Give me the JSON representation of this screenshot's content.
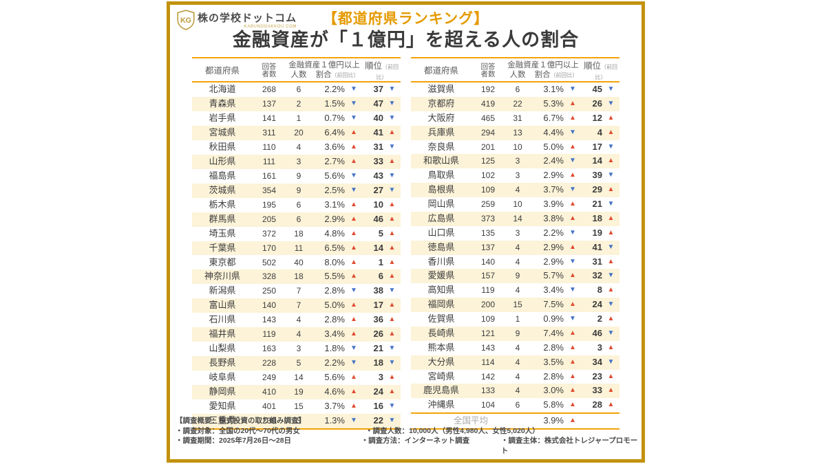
{
  "brand": {
    "name": "株の学校ドットコム",
    "domain": "KABUNOGAKKOU.COM",
    "monogram": "KG"
  },
  "title": {
    "badge": "【都道府県ランキング】",
    "main": "金融資産が「１億円」を超える人の割合"
  },
  "columns": {
    "prefecture": "都道府県",
    "respondents_line1": "回答",
    "respondents_line2": "者数",
    "assets_group": "金融資産１億円以上",
    "count": "人数",
    "ratio": "割合",
    "ratio_note": "（前回比）",
    "rank": "順位",
    "rank_note": "（前回比）"
  },
  "icons": {
    "up": "▲",
    "down": "▼"
  },
  "colors": {
    "frame_gold": "#c3910d",
    "rule_gold": "#f2a206",
    "row_stripe": "#fcf3d8",
    "badge_gold": "#e59a00",
    "title_gray": "#3a3a3a",
    "trend_up_red": "#e04a2f",
    "trend_down_blue": "#4472c4"
  },
  "chart_data": {
    "type": "table",
    "title": "金融資産が「１億円」を超える人の割合",
    "subtitle": "【都道府県ランキング】",
    "columns": [
      "都道府県",
      "回答者数",
      "金融資産１億円以上 人数",
      "金融資産１億円以上 割合（前回比）",
      "順位（前回比）"
    ],
    "left_rows": [
      {
        "pref": "北海道",
        "respondents": "268",
        "count": "6",
        "ratio": "2.2%",
        "ratio_trend": "down",
        "rank": "37",
        "rank_trend": "down"
      },
      {
        "pref": "青森県",
        "respondents": "137",
        "count": "2",
        "ratio": "1.5%",
        "ratio_trend": "down",
        "rank": "47",
        "rank_trend": "down"
      },
      {
        "pref": "岩手県",
        "respondents": "141",
        "count": "1",
        "ratio": "0.7%",
        "ratio_trend": "down",
        "rank": "40",
        "rank_trend": "down"
      },
      {
        "pref": "宮城県",
        "respondents": "311",
        "count": "20",
        "ratio": "6.4%",
        "ratio_trend": "up",
        "rank": "41",
        "rank_trend": "up"
      },
      {
        "pref": "秋田県",
        "respondents": "110",
        "count": "4",
        "ratio": "3.6%",
        "ratio_trend": "up",
        "rank": "31",
        "rank_trend": "down"
      },
      {
        "pref": "山形県",
        "respondents": "111",
        "count": "3",
        "ratio": "2.7%",
        "ratio_trend": "up",
        "rank": "33",
        "rank_trend": "up"
      },
      {
        "pref": "福島県",
        "respondents": "161",
        "count": "9",
        "ratio": "5.6%",
        "ratio_trend": "down",
        "rank": "43",
        "rank_trend": "down"
      },
      {
        "pref": "茨城県",
        "respondents": "354",
        "count": "9",
        "ratio": "2.5%",
        "ratio_trend": "down",
        "rank": "27",
        "rank_trend": "down"
      },
      {
        "pref": "栃木県",
        "respondents": "195",
        "count": "6",
        "ratio": "3.1%",
        "ratio_trend": "up",
        "rank": "10",
        "rank_trend": "up"
      },
      {
        "pref": "群馬県",
        "respondents": "205",
        "count": "6",
        "ratio": "2.9%",
        "ratio_trend": "up",
        "rank": "46",
        "rank_trend": "up"
      },
      {
        "pref": "埼玉県",
        "respondents": "372",
        "count": "18",
        "ratio": "4.8%",
        "ratio_trend": "up",
        "rank": "5",
        "rank_trend": "up"
      },
      {
        "pref": "千葉県",
        "respondents": "170",
        "count": "11",
        "ratio": "6.5%",
        "ratio_trend": "up",
        "rank": "14",
        "rank_trend": "up"
      },
      {
        "pref": "東京都",
        "respondents": "502",
        "count": "40",
        "ratio": "8.0%",
        "ratio_trend": "up",
        "rank": "1",
        "rank_trend": "up"
      },
      {
        "pref": "神奈川県",
        "respondents": "328",
        "count": "18",
        "ratio": "5.5%",
        "ratio_trend": "up",
        "rank": "6",
        "rank_trend": "up"
      },
      {
        "pref": "新潟県",
        "respondents": "250",
        "count": "7",
        "ratio": "2.8%",
        "ratio_trend": "down",
        "rank": "38",
        "rank_trend": "down"
      },
      {
        "pref": "富山県",
        "respondents": "140",
        "count": "7",
        "ratio": "5.0%",
        "ratio_trend": "up",
        "rank": "17",
        "rank_trend": "up"
      },
      {
        "pref": "石川県",
        "respondents": "143",
        "count": "4",
        "ratio": "2.8%",
        "ratio_trend": "up",
        "rank": "36",
        "rank_trend": "up"
      },
      {
        "pref": "福井県",
        "respondents": "119",
        "count": "4",
        "ratio": "3.4%",
        "ratio_trend": "up",
        "rank": "26",
        "rank_trend": "up"
      },
      {
        "pref": "山梨県",
        "respondents": "163",
        "count": "3",
        "ratio": "1.8%",
        "ratio_trend": "down",
        "rank": "21",
        "rank_trend": "down"
      },
      {
        "pref": "長野県",
        "respondents": "228",
        "count": "5",
        "ratio": "2.2%",
        "ratio_trend": "down",
        "rank": "18",
        "rank_trend": "down"
      },
      {
        "pref": "岐阜県",
        "respondents": "249",
        "count": "14",
        "ratio": "5.6%",
        "ratio_trend": "up",
        "rank": "3",
        "rank_trend": "up"
      },
      {
        "pref": "静岡県",
        "respondents": "410",
        "count": "19",
        "ratio": "4.6%",
        "ratio_trend": "up",
        "rank": "24",
        "rank_trend": "up"
      },
      {
        "pref": "愛知県",
        "respondents": "401",
        "count": "15",
        "ratio": "3.7%",
        "ratio_trend": "up",
        "rank": "16",
        "rank_trend": "down"
      },
      {
        "pref": "三重県",
        "respondents": "239",
        "count": "3",
        "ratio": "1.3%",
        "ratio_trend": "down",
        "rank": "22",
        "rank_trend": "down"
      }
    ],
    "right_rows": [
      {
        "pref": "滋賀県",
        "respondents": "192",
        "count": "6",
        "ratio": "3.1%",
        "ratio_trend": "down",
        "rank": "45",
        "rank_trend": "down"
      },
      {
        "pref": "京都府",
        "respondents": "419",
        "count": "22",
        "ratio": "5.3%",
        "ratio_trend": "up",
        "rank": "26",
        "rank_trend": "down"
      },
      {
        "pref": "大阪府",
        "respondents": "465",
        "count": "31",
        "ratio": "6.7%",
        "ratio_trend": "up",
        "rank": "12",
        "rank_trend": "up"
      },
      {
        "pref": "兵庫県",
        "respondents": "294",
        "count": "13",
        "ratio": "4.4%",
        "ratio_trend": "down",
        "rank": "4",
        "rank_trend": "up"
      },
      {
        "pref": "奈良県",
        "respondents": "201",
        "count": "10",
        "ratio": "5.0%",
        "ratio_trend": "up",
        "rank": "17",
        "rank_trend": "down"
      },
      {
        "pref": "和歌山県",
        "respondents": "125",
        "count": "3",
        "ratio": "2.4%",
        "ratio_trend": "down",
        "rank": "14",
        "rank_trend": "up"
      },
      {
        "pref": "鳥取県",
        "respondents": "102",
        "count": "3",
        "ratio": "2.9%",
        "ratio_trend": "up",
        "rank": "39",
        "rank_trend": "down"
      },
      {
        "pref": "島根県",
        "respondents": "109",
        "count": "4",
        "ratio": "3.7%",
        "ratio_trend": "down",
        "rank": "29",
        "rank_trend": "up"
      },
      {
        "pref": "岡山県",
        "respondents": "259",
        "count": "10",
        "ratio": "3.9%",
        "ratio_trend": "up",
        "rank": "21",
        "rank_trend": "down"
      },
      {
        "pref": "広島県",
        "respondents": "373",
        "count": "14",
        "ratio": "3.8%",
        "ratio_trend": "up",
        "rank": "18",
        "rank_trend": "up"
      },
      {
        "pref": "山口県",
        "respondents": "135",
        "count": "3",
        "ratio": "2.2%",
        "ratio_trend": "down",
        "rank": "19",
        "rank_trend": "up"
      },
      {
        "pref": "徳島県",
        "respondents": "137",
        "count": "4",
        "ratio": "2.9%",
        "ratio_trend": "up",
        "rank": "41",
        "rank_trend": "down"
      },
      {
        "pref": "香川県",
        "respondents": "140",
        "count": "4",
        "ratio": "2.9%",
        "ratio_trend": "down",
        "rank": "31",
        "rank_trend": "up"
      },
      {
        "pref": "愛媛県",
        "respondents": "157",
        "count": "9",
        "ratio": "5.7%",
        "ratio_trend": "up",
        "rank": "32",
        "rank_trend": "down"
      },
      {
        "pref": "高知県",
        "respondents": "119",
        "count": "4",
        "ratio": "3.4%",
        "ratio_trend": "down",
        "rank": "8",
        "rank_trend": "up"
      },
      {
        "pref": "福岡県",
        "respondents": "200",
        "count": "15",
        "ratio": "7.5%",
        "ratio_trend": "up",
        "rank": "24",
        "rank_trend": "down"
      },
      {
        "pref": "佐賀県",
        "respondents": "109",
        "count": "1",
        "ratio": "0.9%",
        "ratio_trend": "down",
        "rank": "2",
        "rank_trend": "up"
      },
      {
        "pref": "長崎県",
        "respondents": "121",
        "count": "9",
        "ratio": "7.4%",
        "ratio_trend": "up",
        "rank": "46",
        "rank_trend": "down"
      },
      {
        "pref": "熊本県",
        "respondents": "143",
        "count": "4",
        "ratio": "2.8%",
        "ratio_trend": "up",
        "rank": "3",
        "rank_trend": "up"
      },
      {
        "pref": "大分県",
        "respondents": "114",
        "count": "4",
        "ratio": "3.5%",
        "ratio_trend": "up",
        "rank": "34",
        "rank_trend": "down"
      },
      {
        "pref": "宮崎県",
        "respondents": "142",
        "count": "4",
        "ratio": "2.8%",
        "ratio_trend": "up",
        "rank": "23",
        "rank_trend": "up"
      },
      {
        "pref": "鹿児島県",
        "respondents": "133",
        "count": "4",
        "ratio": "3.0%",
        "ratio_trend": "up",
        "rank": "33",
        "rank_trend": "up"
      },
      {
        "pref": "沖縄県",
        "respondents": "104",
        "count": "6",
        "ratio": "5.8%",
        "ratio_trend": "up",
        "rank": "28",
        "rank_trend": "up"
      }
    ],
    "national_average": {
      "label": "全国平均",
      "ratio": "3.9%",
      "ratio_trend": "up"
    }
  },
  "footer": {
    "heading": "【調査概要：株式投資の取り組み調査】",
    "line1": [
      "・調査対象：全国の20代～70代の男女",
      "・調査人数：10,000人（男性4,980人、女性5,020人）"
    ],
    "line2": [
      "・調査期間：2025年7月26日～28日",
      "・調査方法：インターネット調査",
      "・調査主体：株式会社トレジャープロモート"
    ]
  }
}
